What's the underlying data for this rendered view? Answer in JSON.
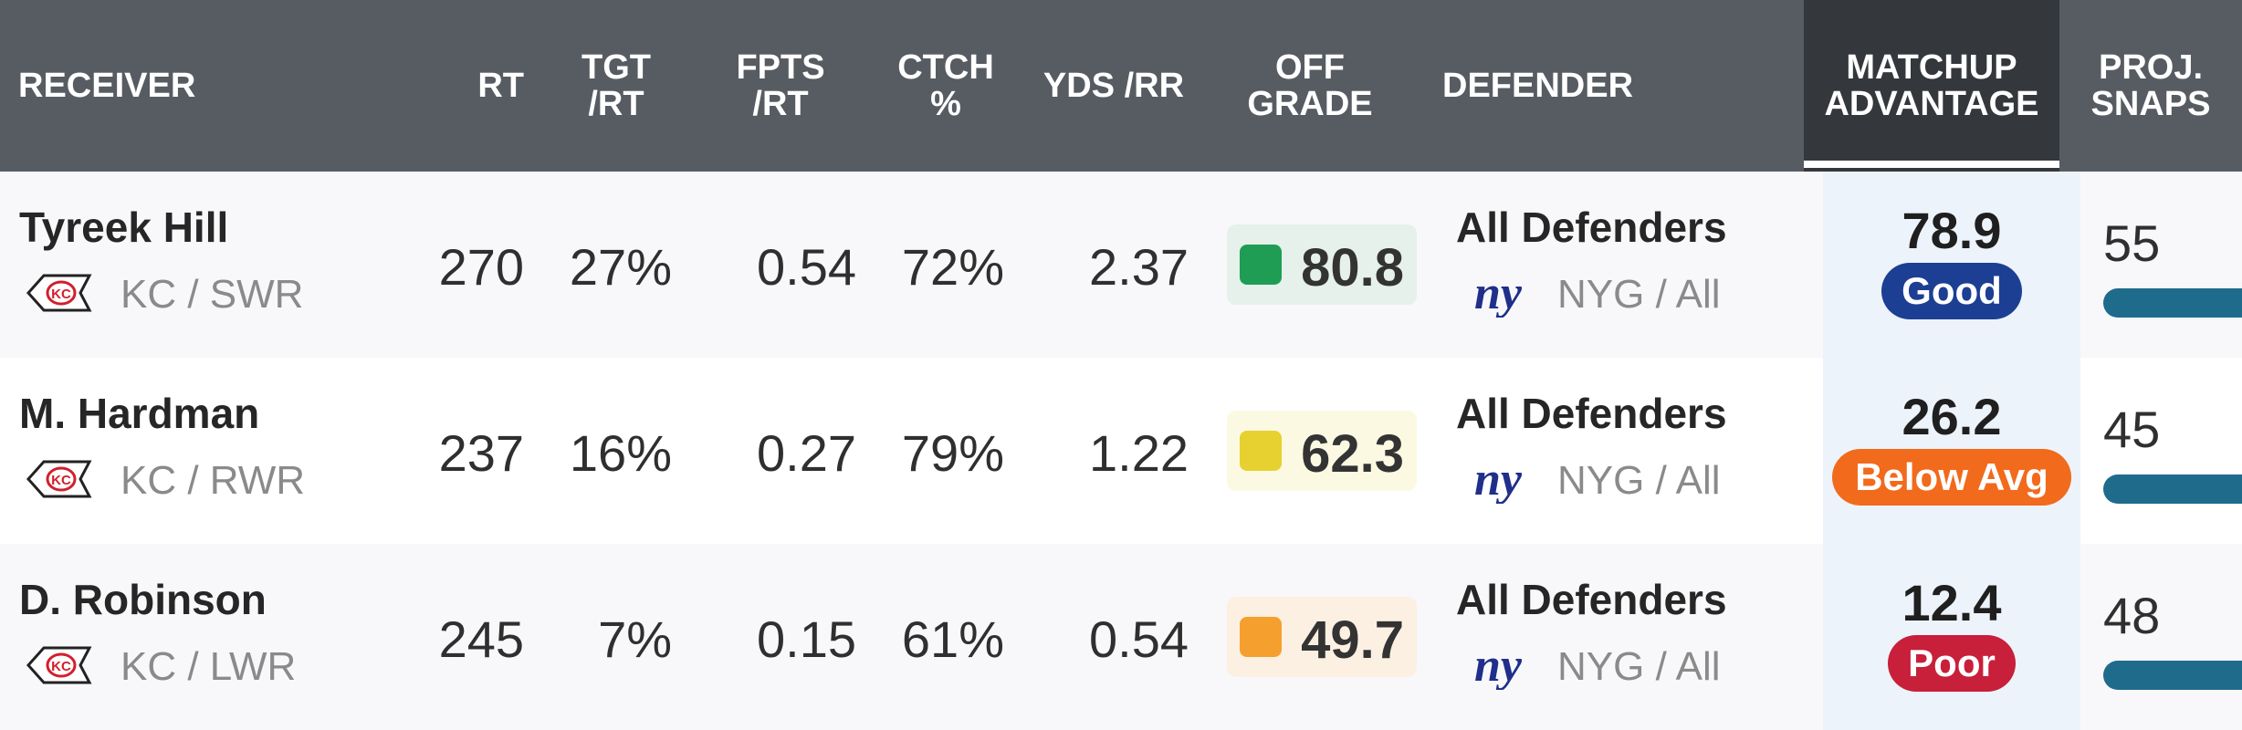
{
  "headers": {
    "receiver": "RECEIVER",
    "rt": "RT",
    "tgt_rt": "TGT\n/RT",
    "fpts_rt": "FPTS\n/RT",
    "ctch": "CTCH\n%",
    "yds_rr": "YDS /RR",
    "off_grade": "OFF\nGRADE",
    "defender": "DEFENDER",
    "matchup": "MATCHUP\nADVANTAGE",
    "proj_snaps": "PROJ.\nSNAPS"
  },
  "colors": {
    "header_bg": "#575c63",
    "matchup_header_bg": "#34373c",
    "grade_green": "#1f9d55",
    "grade_yellow": "#e6d130",
    "grade_orange": "#f5a02e",
    "badge_good": "#1c3f94",
    "badge_below_avg": "#f26a1b",
    "badge_poor": "#c81f3a",
    "snaps_bar": "#1f6b8c"
  },
  "rows": [
    {
      "name": "Tyreek Hill",
      "team_pos": "KC / SWR",
      "team_logo": "chiefs-arrowhead-icon",
      "rt": "270",
      "tgt_rt": "27%",
      "fpts_rt": "0.54",
      "ctch": "72%",
      "yds_rr": "2.37",
      "off_grade": "80.8",
      "grade_color": "#1f9d55",
      "grade_bg": "#e5f1ea",
      "defender": "All Defenders",
      "def_team": "NYG / All",
      "def_logo": "giants-ny-icon",
      "matchup_value": "78.9",
      "matchup_label": "Good",
      "matchup_color": "#1c3f94",
      "snaps": "55"
    },
    {
      "name": "M. Hardman",
      "team_pos": "KC / RWR",
      "team_logo": "chiefs-arrowhead-icon",
      "rt": "237",
      "tgt_rt": "16%",
      "fpts_rt": "0.27",
      "ctch": "79%",
      "yds_rr": "1.22",
      "off_grade": "62.3",
      "grade_color": "#e6d130",
      "grade_bg": "#fcf9e3",
      "defender": "All Defenders",
      "def_team": "NYG / All",
      "def_logo": "giants-ny-icon",
      "matchup_value": "26.2",
      "matchup_label": "Below Avg",
      "matchup_color": "#f26a1b",
      "snaps": "45"
    },
    {
      "name": "D. Robinson",
      "team_pos": "KC / LWR",
      "team_logo": "chiefs-arrowhead-icon",
      "rt": "245",
      "tgt_rt": "7%",
      "fpts_rt": "0.15",
      "ctch": "61%",
      "yds_rr": "0.54",
      "off_grade": "49.7",
      "grade_color": "#f5a02e",
      "grade_bg": "#fcf0e2",
      "defender": "All Defenders",
      "def_team": "NYG / All",
      "def_logo": "giants-ny-icon",
      "matchup_value": "12.4",
      "matchup_label": "Poor",
      "matchup_color": "#c81f3a",
      "snaps": "48"
    }
  ]
}
